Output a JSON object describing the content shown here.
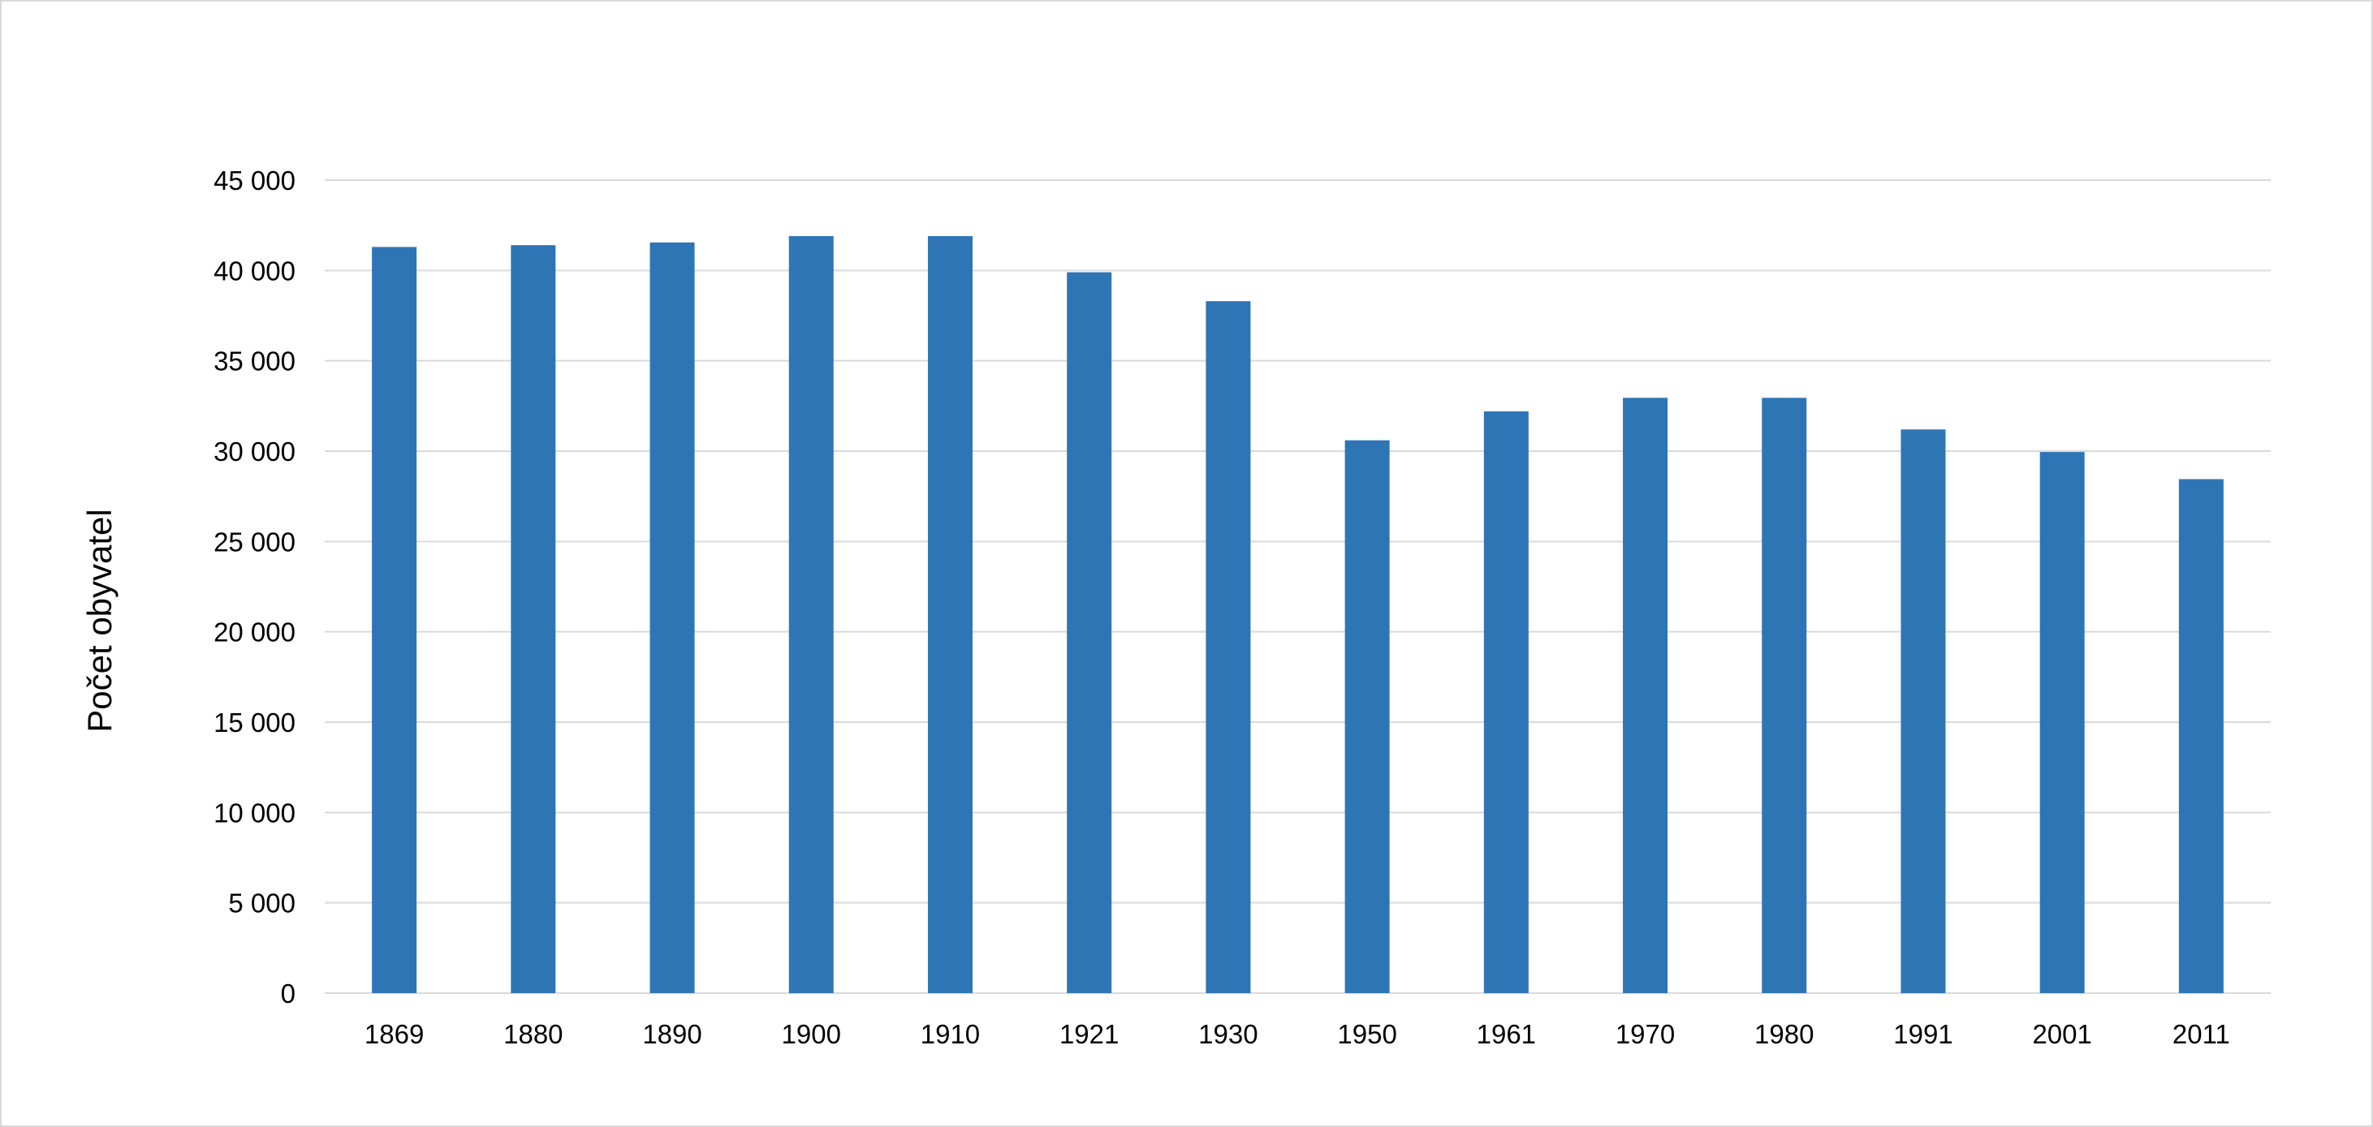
{
  "chart_data": {
    "type": "bar",
    "title": "",
    "xlabel": "",
    "ylabel": "Počet obyvatel",
    "categories": [
      "1869",
      "1880",
      "1890",
      "1900",
      "1910",
      "1921",
      "1930",
      "1950",
      "1961",
      "1970",
      "1980",
      "1991",
      "2001",
      "2011"
    ],
    "values": [
      41300,
      41400,
      41550,
      41900,
      41900,
      39900,
      38300,
      30600,
      32200,
      32950,
      32950,
      31200,
      29950,
      28450
    ],
    "ylim": [
      0,
      45000
    ],
    "yticks": [
      0,
      5000,
      10000,
      15000,
      20000,
      25000,
      30000,
      35000,
      40000,
      45000
    ],
    "ytick_labels": [
      "0",
      "5 000",
      "10 000",
      "15 000",
      "20 000",
      "25 000",
      "30 000",
      "35 000",
      "40 000",
      "45 000"
    ],
    "grid": "horizontal",
    "legend": "none",
    "colors": {
      "bar": "#2e75b6",
      "grid": "#d9d9d9",
      "frame": "#d9d9d9"
    }
  }
}
